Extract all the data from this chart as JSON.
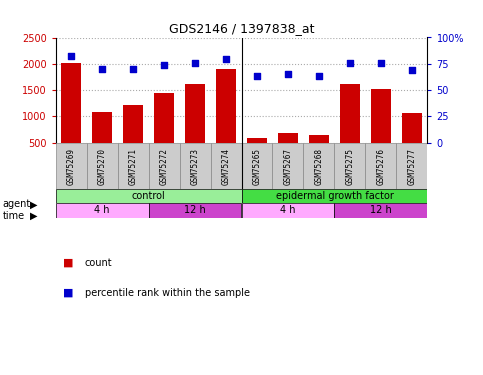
{
  "title": "GDS2146 / 1397838_at",
  "samples": [
    "GSM75269",
    "GSM75270",
    "GSM75271",
    "GSM75272",
    "GSM75273",
    "GSM75274",
    "GSM75265",
    "GSM75267",
    "GSM75268",
    "GSM75275",
    "GSM75276",
    "GSM75277"
  ],
  "counts": [
    2020,
    1090,
    1210,
    1450,
    1610,
    1900,
    590,
    680,
    650,
    1620,
    1530,
    1070
  ],
  "percentile_ranks": [
    82,
    70,
    70,
    74,
    76,
    80,
    63,
    65,
    63,
    76,
    76,
    69
  ],
  "bar_color": "#cc0000",
  "dot_color": "#0000cc",
  "ylim_left": [
    500,
    2500
  ],
  "ylim_right": [
    0,
    100
  ],
  "yticks_left": [
    500,
    1000,
    1500,
    2000,
    2500
  ],
  "yticks_right": [
    0,
    25,
    50,
    75,
    100
  ],
  "ytick_labels_right": [
    "0",
    "25",
    "50",
    "75",
    "100%"
  ],
  "agent_row": [
    {
      "label": "control",
      "start": 0,
      "end": 6,
      "color": "#99ee99"
    },
    {
      "label": "epidermal growth factor",
      "start": 6,
      "end": 12,
      "color": "#44dd44"
    }
  ],
  "time_row": [
    {
      "label": "4 h",
      "start": 0,
      "end": 3,
      "color": "#ffaaff"
    },
    {
      "label": "12 h",
      "start": 3,
      "end": 6,
      "color": "#cc44cc"
    },
    {
      "label": "4 h",
      "start": 6,
      "end": 9,
      "color": "#ffaaff"
    },
    {
      "label": "12 h",
      "start": 9,
      "end": 12,
      "color": "#cc44cc"
    }
  ],
  "legend_count_color": "#cc0000",
  "legend_dot_color": "#0000cc",
  "grid_color": "#aaaaaa",
  "bar_bottom": 500,
  "xlabel_color": "#cc0000",
  "ylabel_right_color": "#0000cc",
  "sample_box_color": "#cccccc",
  "sample_box_edge": "#888888"
}
